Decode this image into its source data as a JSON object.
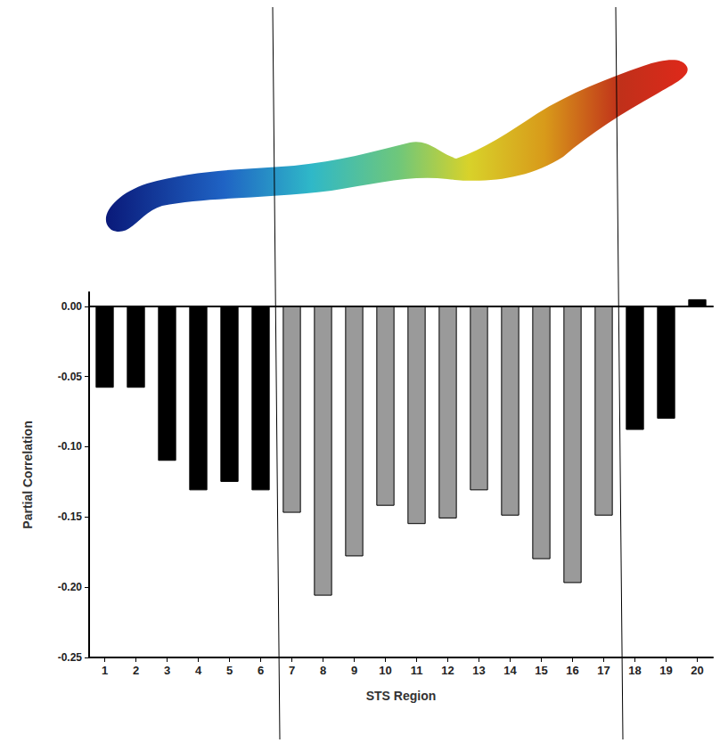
{
  "chart_data": {
    "type": "bar",
    "x_label": "STS Region",
    "y_label": "Partial Correlation",
    "categories": [
      "1",
      "2",
      "3",
      "4",
      "5",
      "6",
      "7",
      "8",
      "9",
      "10",
      "11",
      "12",
      "13",
      "14",
      "15",
      "16",
      "17",
      "18",
      "19",
      "20"
    ],
    "values": [
      -0.058,
      -0.058,
      -0.11,
      -0.131,
      -0.125,
      -0.131,
      -0.147,
      -0.206,
      -0.178,
      -0.142,
      -0.155,
      -0.151,
      -0.131,
      -0.149,
      -0.18,
      -0.197,
      -0.149,
      -0.088,
      -0.08,
      0.005
    ],
    "colors": [
      "#000000",
      "#000000",
      "#000000",
      "#000000",
      "#000000",
      "#000000",
      "#9a9a9a",
      "#9a9a9a",
      "#9a9a9a",
      "#9a9a9a",
      "#9a9a9a",
      "#9a9a9a",
      "#9a9a9a",
      "#9a9a9a",
      "#9a9a9a",
      "#9a9a9a",
      "#9a9a9a",
      "#000000",
      "#000000",
      "#000000"
    ],
    "ylim": [
      -0.25,
      0.01
    ],
    "yticks": [
      {
        "value": 0,
        "label": "0.00"
      },
      {
        "value": -0.05,
        "label": "-0.05"
      },
      {
        "value": -0.1,
        "label": "-0.10"
      },
      {
        "value": -0.15,
        "label": "-0.15"
      },
      {
        "value": -0.2,
        "label": "-0.20"
      },
      {
        "value": -0.25,
        "label": "-0.25"
      }
    ],
    "grid": false
  }
}
